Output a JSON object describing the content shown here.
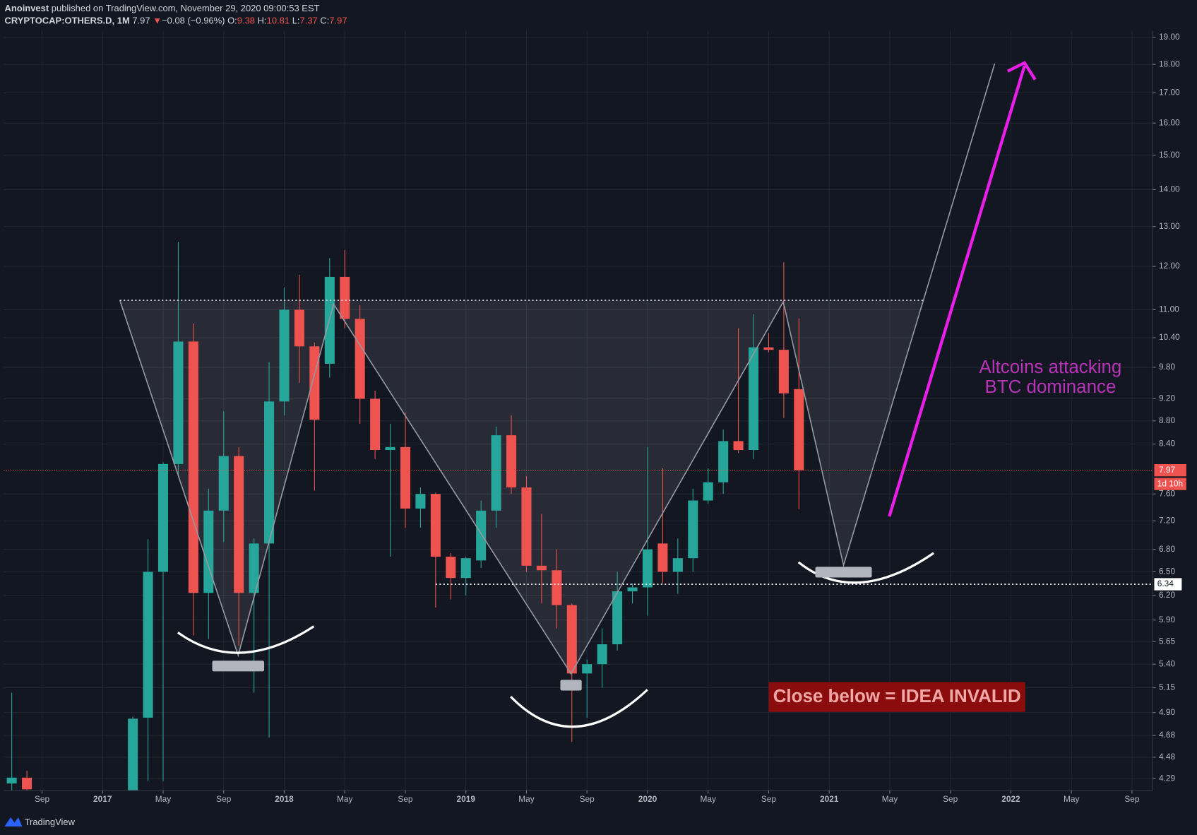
{
  "header": {
    "author": "Anoinvest",
    "published": "published on TradingView.com, November 29, 2020 09:00:53 EST",
    "symbol": "CRYPTOCAP:OTHERS.D, 1M",
    "last": "7.97",
    "arrow": "▼",
    "change": "−0.08 (−0.96%)",
    "ohlc": [
      {
        "label": "O:",
        "value": "9.38"
      },
      {
        "label": "H:",
        "value": "10.81"
      },
      {
        "label": "L:",
        "value": "7.37"
      },
      {
        "label": "C:",
        "value": "7.97"
      }
    ]
  },
  "chart_data": {
    "type": "candlestick",
    "yscale": "log",
    "grid": true,
    "up_color": "#26a69a",
    "down_color": "#ef5350",
    "categories": [
      null,
      null,
      "Sep",
      null,
      null,
      null,
      "2017",
      null,
      null,
      null,
      "May",
      null,
      null,
      null,
      "Sep",
      null,
      null,
      null,
      "2018",
      null,
      null,
      null,
      "May",
      null,
      null,
      null,
      "Sep",
      null,
      null,
      null,
      "2019",
      null,
      null,
      null,
      "May",
      null,
      null,
      null,
      "Sep",
      null,
      null,
      null,
      "2020",
      null,
      null,
      null,
      "May",
      null,
      null,
      null,
      "Sep",
      null,
      null,
      null,
      "2021",
      null,
      null,
      null,
      "May",
      null,
      null,
      null,
      "Sep",
      null,
      null,
      null,
      "2022",
      null,
      null,
      null,
      "May",
      null,
      null,
      null,
      "Sep",
      null
    ],
    "open": [
      4.25,
      4.3,
      null,
      null,
      null,
      null,
      null,
      null,
      4.1,
      4.85,
      6.5,
      8.07,
      10.32,
      6.23,
      7.35,
      8.2,
      6.23,
      6.88,
      9.15,
      11.0,
      10.22,
      9.87,
      11.75,
      10.8,
      9.2,
      8.3,
      8.35,
      7.38,
      7.6,
      6.7,
      6.42,
      6.65,
      7.35,
      8.55,
      7.7,
      6.58,
      6.52,
      6.08,
      5.3,
      5.4,
      5.62,
      6.25,
      6.3,
      6.88,
      6.5,
      6.68,
      7.5,
      7.78,
      8.45,
      8.3,
      10.2,
      10.15,
      9.38,
      null,
      null,
      null,
      null,
      null,
      null,
      null,
      null,
      null,
      null,
      null,
      null,
      null,
      null,
      null,
      null,
      null,
      null,
      null,
      null,
      null,
      null,
      null
    ],
    "high": [
      5.1,
      4.36,
      null,
      null,
      null,
      null,
      null,
      null,
      4.86,
      6.94,
      8.1,
      12.6,
      10.7,
      7.68,
      8.97,
      8.35,
      6.95,
      9.9,
      11.5,
      11.8,
      10.3,
      12.2,
      12.4,
      11.1,
      9.35,
      8.75,
      8.95,
      7.7,
      7.62,
      6.75,
      6.7,
      7.5,
      8.7,
      8.9,
      7.88,
      7.3,
      6.8,
      6.1,
      5.45,
      5.8,
      6.5,
      6.35,
      8.35,
      8.0,
      6.95,
      7.68,
      8.0,
      8.65,
      10.6,
      10.9,
      10.5,
      12.1,
      10.81,
      null,
      null,
      null,
      null,
      null,
      null,
      null,
      null,
      null,
      null,
      null,
      null,
      null,
      null,
      null,
      null,
      null,
      null,
      null,
      null,
      null,
      null,
      null
    ],
    "low": [
      4.1,
      4.1,
      null,
      null,
      null,
      null,
      null,
      null,
      4.0,
      4.27,
      4.27,
      7.9,
      5.72,
      5.68,
      6.9,
      5.6,
      5.1,
      4.66,
      8.9,
      9.5,
      7.65,
      9.6,
      10.6,
      8.75,
      8.15,
      6.7,
      7.1,
      7.1,
      6.05,
      6.15,
      6.2,
      6.55,
      7.1,
      7.6,
      6.5,
      6.1,
      5.8,
      4.62,
      4.85,
      5.15,
      5.55,
      6.1,
      5.95,
      6.35,
      6.22,
      6.5,
      7.45,
      7.6,
      8.25,
      8.15,
      10.1,
      8.85,
      7.37,
      null,
      null,
      null,
      null,
      null,
      null,
      null,
      null,
      null,
      null,
      null,
      null,
      null,
      null,
      null,
      null,
      null,
      null,
      null,
      null,
      null,
      null,
      null
    ],
    "close": [
      4.3,
      4.2,
      null,
      null,
      null,
      null,
      null,
      null,
      4.84,
      6.5,
      8.07,
      10.32,
      6.23,
      7.35,
      8.2,
      6.23,
      6.88,
      9.15,
      11.0,
      10.22,
      8.82,
      11.75,
      10.8,
      9.2,
      8.3,
      8.35,
      7.38,
      7.6,
      6.7,
      6.42,
      6.68,
      7.35,
      8.55,
      7.7,
      6.58,
      6.52,
      6.08,
      5.3,
      5.4,
      5.62,
      6.25,
      6.3,
      6.8,
      6.5,
      6.68,
      7.5,
      7.78,
      8.45,
      8.3,
      10.2,
      10.15,
      9.3,
      7.97,
      null,
      null,
      null,
      null,
      null,
      null,
      null,
      null,
      null,
      null,
      null,
      null,
      null,
      null,
      null,
      null,
      null,
      null,
      null,
      null,
      null,
      null,
      null
    ],
    "ylim": [
      4.19,
      19.26
    ],
    "yticks": [
      {
        "value": 19,
        "label": "19.00"
      },
      {
        "value": 18,
        "label": "18.00"
      },
      {
        "value": 17,
        "label": "17.00"
      },
      {
        "value": 16,
        "label": "16.00"
      },
      {
        "value": 15,
        "label": "15.00"
      },
      {
        "value": 14,
        "label": "14.00"
      },
      {
        "value": 13,
        "label": "13.00"
      },
      {
        "value": 12,
        "label": "12.00"
      },
      {
        "value": 11,
        "label": "11.00"
      },
      {
        "value": 10.4,
        "label": "10.40"
      },
      {
        "value": 9.8,
        "label": "9.80"
      },
      {
        "value": 9.2,
        "label": "9.20"
      },
      {
        "value": 8.8,
        "label": "8.80"
      },
      {
        "value": 8.4,
        "label": "8.40"
      },
      {
        "value": 7.6,
        "label": "7.60"
      },
      {
        "value": 7.2,
        "label": "7.20"
      },
      {
        "value": 6.8,
        "label": "6.80"
      },
      {
        "value": 6.5,
        "label": "6.50"
      },
      {
        "value": 6.2,
        "label": "6.20"
      },
      {
        "value": 5.9,
        "label": "5.90"
      },
      {
        "value": 5.65,
        "label": "5.65"
      },
      {
        "value": 5.4,
        "label": "5.40"
      },
      {
        "value": 5.15,
        "label": "5.15"
      },
      {
        "value": 4.9,
        "label": "4.90"
      },
      {
        "value": 4.68,
        "label": "4.68"
      },
      {
        "value": 4.48,
        "label": "4.48"
      },
      {
        "value": 4.29,
        "label": "4.29"
      }
    ],
    "price_line": {
      "value": 7.97,
      "label": "7.97",
      "countdown": "1d 10h",
      "color": "#ef5350"
    },
    "level_line": {
      "value": 6.34,
      "label": "6.34"
    },
    "annotations": [
      "Altcoins attacking",
      "BTC dominance",
      "Close below = IDEA INVALID"
    ]
  },
  "footer": {
    "brand": "TradingView"
  }
}
